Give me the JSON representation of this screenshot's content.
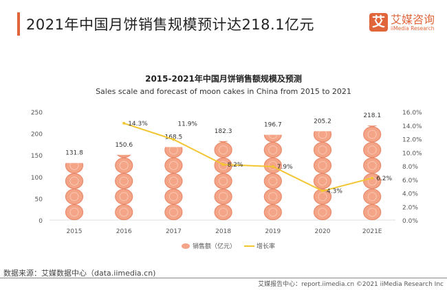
{
  "header": {
    "title": "2021年中国月饼销售规模预计达218.1亿元"
  },
  "logo": {
    "mark": "艾",
    "name_cn": "艾媒咨询",
    "name_en": "iiMedia Research"
  },
  "chart_data": {
    "type": "bar",
    "title": "2015-2021年中国月饼销售额规模及预测",
    "subtitle": "Sales scale and forecast of moon cakes in China from 2015 to 2021",
    "categories": [
      "2015",
      "2016",
      "2017",
      "2018",
      "2019",
      "2020",
      "2021E"
    ],
    "series": [
      {
        "name": "销售额（亿元）",
        "type": "bar",
        "axis": "left",
        "values": [
          131.8,
          150.6,
          168.5,
          182.3,
          196.7,
          205.2,
          218.1
        ],
        "labels": [
          "131.8",
          "150.6",
          "168.5",
          "182.3",
          "196.7",
          "205.2",
          "218.1"
        ],
        "color": "#f4a487"
      },
      {
        "name": "增长率",
        "type": "line",
        "axis": "right",
        "values": [
          null,
          14.3,
          11.9,
          8.2,
          7.9,
          4.3,
          6.2
        ],
        "labels": [
          "",
          "14.3%",
          "11.9%",
          "8.2%",
          "7.9%",
          "4.3%",
          "6.2%"
        ],
        "color": "#f2c531"
      }
    ],
    "ylim": [
      0,
      250
    ],
    "yticks": [
      "0",
      "50",
      "100",
      "150",
      "200",
      "250"
    ],
    "y2lim": [
      0,
      16
    ],
    "y2ticks": [
      "0.0%",
      "2.0%",
      "4.0%",
      "6.0%",
      "8.0%",
      "10.0%",
      "12.0%",
      "14.0%",
      "16.0%"
    ],
    "grid": false,
    "legend": "bottom"
  },
  "source": "数据来源：艾媒数据中心（data.iimedia.cn)",
  "footer": "艾媒报告中心：report.iimedia.cn  ©2021  iiMedia Research  Inc"
}
